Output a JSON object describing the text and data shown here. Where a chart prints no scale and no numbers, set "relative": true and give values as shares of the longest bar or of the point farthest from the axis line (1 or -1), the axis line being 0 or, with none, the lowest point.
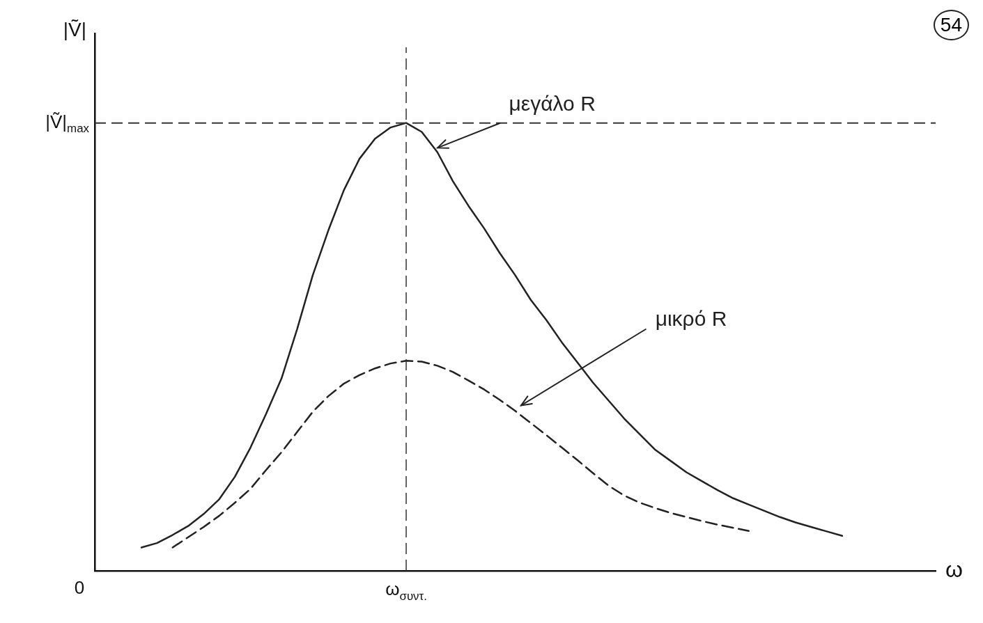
{
  "chart_data": {
    "type": "line",
    "relative": true,
    "xlabel": "ω",
    "ylabel": "|Ṽ|",
    "grid": false,
    "legend": false,
    "marker": "none",
    "annotations": [
      "54",
      "0",
      "ω$_{συντ.}$"
    ],
    "categories": [
      null,
      null,
      null,
      null,
      null,
      null,
      null,
      null,
      null,
      null,
      null,
      null,
      null,
      null,
      null,
      null,
      null,
      null,
      null,
      null,
      null,
      null,
      null,
      null,
      null,
      null,
      null,
      null,
      null,
      null,
      null,
      null,
      null,
      null,
      null,
      null,
      null,
      null,
      null,
      null,
      null,
      null,
      null,
      null,
      null,
      null,
      null,
      null,
      null,
      null,
      null,
      null,
      null,
      null,
      null
    ],
    "ref_lines": [
      {
        "axis": "y",
        "value": 1,
        "label": "|Ṽ|$_{max}$",
        "line_style": "dashed",
        "color": "#333333"
      }
    ],
    "series": [
      {
        "name": "μεγάλο R",
        "color": "#222222",
        "line_style": "solid",
        "values": [
          null,
          null,
          null,
          0.052,
          0.062,
          0.08,
          0.1,
          0.127,
          0.16,
          0.21,
          0.275,
          0.35,
          0.43,
          0.54,
          0.66,
          0.76,
          0.85,
          0.92,
          0.965,
          0.99,
          1,
          0.98,
          0.935,
          0.87,
          0.815,
          0.765,
          0.71,
          0.66,
          0.605,
          0.56,
          0.51,
          0.465,
          0.42,
          0.38,
          0.34,
          0.305,
          0.27,
          0.245,
          0.22,
          0.2,
          0.18,
          0.162,
          0.148,
          0.134,
          0.12,
          0.108,
          0.098,
          0.088,
          0.078,
          null,
          null,
          null,
          null,
          null,
          null
        ]
      },
      {
        "name": "μικρό R",
        "color": "#222222",
        "line_style": "dashed",
        "values": [
          null,
          null,
          null,
          null,
          null,
          0.052,
          0.075,
          0.098,
          0.123,
          0.152,
          0.183,
          0.225,
          0.265,
          0.31,
          0.355,
          0.39,
          0.418,
          0.437,
          0.452,
          0.463,
          0.469,
          0.467,
          0.458,
          0.444,
          0.425,
          0.405,
          0.382,
          0.357,
          0.33,
          0.303,
          0.275,
          0.247,
          0.218,
          0.19,
          0.168,
          0.152,
          0.14,
          0.129,
          0.12,
          0.111,
          0.103,
          0.096,
          0.089,
          null,
          null,
          null,
          null,
          null,
          null,
          null,
          null,
          null,
          null,
          null,
          null
        ]
      }
    ]
  }
}
